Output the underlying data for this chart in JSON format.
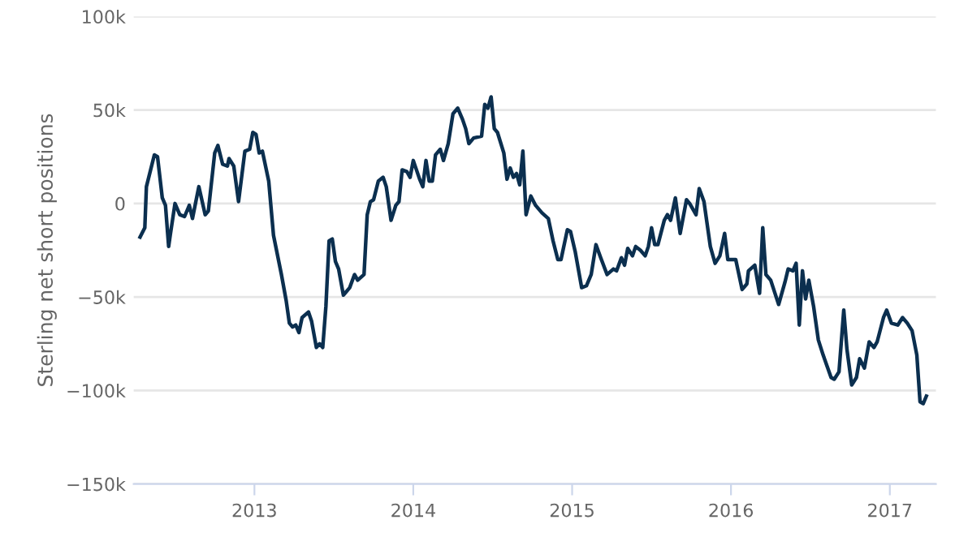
{
  "chart_data": {
    "type": "line",
    "ylabel": "Sterling net short positions",
    "grid": "y",
    "xlim": [
      2012.24,
      2017.29
    ],
    "xticks": [
      2013,
      2014,
      2015,
      2016,
      2017
    ],
    "ylim": [
      -150000,
      100000
    ],
    "yticks": [
      {
        "value": -150000,
        "label": "−150k"
      },
      {
        "value": -100000,
        "label": "−100k"
      },
      {
        "value": -50000,
        "label": "−50k"
      },
      0,
      {
        "value": 50000,
        "label": "50k"
      },
      {
        "value": 100000,
        "label": "100k"
      }
    ],
    "series": [
      {
        "color": "#0b2f4f",
        "x": [
          2012.28,
          2012.31,
          2012.32,
          2012.37,
          2012.39,
          2012.42,
          2012.44,
          2012.46,
          2012.47,
          2012.5,
          2012.53,
          2012.56,
          2012.59,
          2012.61,
          2012.65,
          2012.69,
          2012.71,
          2012.75,
          2012.77,
          2012.8,
          2012.83,
          2012.84,
          2012.87,
          2012.9,
          2012.94,
          2012.97,
          2012.99,
          2013.01,
          2013.03,
          2013.05,
          2013.09,
          2013.12,
          2013.17,
          2013.2,
          2013.22,
          2013.24,
          2013.26,
          2013.28,
          2013.3,
          2013.34,
          2013.36,
          2013.39,
          2013.41,
          2013.43,
          2013.45,
          2013.47,
          2013.49,
          2013.51,
          2013.53,
          2013.56,
          2013.57,
          2013.6,
          2013.63,
          2013.65,
          2013.69,
          2013.71,
          2013.73,
          2013.75,
          2013.78,
          2013.81,
          2013.83,
          2013.86,
          2013.89,
          2013.91,
          2013.93,
          2013.96,
          2013.98,
          2014.0,
          2014.02,
          2014.04,
          2014.06,
          2014.08,
          2014.1,
          2014.12,
          2014.14,
          2014.17,
          2014.19,
          2014.22,
          2014.25,
          2014.28,
          2014.31,
          2014.33,
          2014.35,
          2014.38,
          2014.43,
          2014.45,
          2014.47,
          2014.49,
          2014.51,
          2014.53,
          2014.57,
          2014.59,
          2014.61,
          2014.63,
          2014.65,
          2014.67,
          2014.69,
          2014.71,
          2014.74,
          2014.77,
          2014.81,
          2014.85,
          2014.88,
          2014.91,
          2014.93,
          2014.97,
          2014.99,
          2015.02,
          2015.06,
          2015.09,
          2015.12,
          2015.15,
          2015.18,
          2015.22,
          2015.26,
          2015.28,
          2015.31,
          2015.33,
          2015.35,
          2015.38,
          2015.4,
          2015.43,
          2015.46,
          2015.48,
          2015.5,
          2015.52,
          2015.54,
          2015.58,
          2015.6,
          2015.62,
          2015.65,
          2015.68,
          2015.72,
          2015.74,
          2015.78,
          2015.8,
          2015.83,
          2015.87,
          2015.9,
          2015.93,
          2015.96,
          2015.98,
          2016.03,
          2016.07,
          2016.1,
          2016.11,
          2016.15,
          2016.18,
          2016.2,
          2016.22,
          2016.25,
          2016.3,
          2016.34,
          2016.36,
          2016.39,
          2016.41,
          2016.43,
          2016.45,
          2016.47,
          2016.49,
          2016.52,
          2016.55,
          2016.58,
          2016.63,
          2016.65,
          2016.68,
          2016.71,
          2016.73,
          2016.76,
          2016.79,
          2016.81,
          2016.84,
          2016.87,
          2016.9,
          2016.92,
          2016.96,
          2016.98,
          2017.01,
          2017.05,
          2017.08,
          2017.11,
          2017.14,
          2017.17,
          2017.19,
          2017.21,
          2017.23
        ],
        "values": [
          -18000,
          -13000,
          9000,
          26000,
          25000,
          3000,
          -1000,
          -23000,
          -17000,
          0,
          -6000,
          -7000,
          -1000,
          -8000,
          9000,
          -6000,
          -4000,
          27000,
          31000,
          21000,
          20000,
          24000,
          20000,
          1000,
          28000,
          29000,
          38000,
          37000,
          27000,
          28000,
          12000,
          -17000,
          -38000,
          -52000,
          -64000,
          -66000,
          -65000,
          -69000,
          -61000,
          -58000,
          -63000,
          -77000,
          -75000,
          -77000,
          -55000,
          -20000,
          -19000,
          -31000,
          -35000,
          -49000,
          -48000,
          -45000,
          -38000,
          -41000,
          -38000,
          -6000,
          1000,
          2000,
          12000,
          14000,
          9000,
          -9000,
          -1000,
          1000,
          18000,
          17000,
          14000,
          23000,
          18000,
          13000,
          9000,
          23000,
          12000,
          12000,
          26000,
          29000,
          23000,
          32000,
          48000,
          51000,
          45000,
          40000,
          32000,
          35000,
          36000,
          53000,
          51000,
          57000,
          40000,
          38000,
          27000,
          13000,
          19000,
          14000,
          16000,
          10000,
          28000,
          -6000,
          4000,
          -1000,
          -5000,
          -8000,
          -20000,
          -30000,
          -30000,
          -14000,
          -15000,
          -26000,
          -45000,
          -44000,
          -38000,
          -22000,
          -29000,
          -38000,
          -35000,
          -36000,
          -29000,
          -33000,
          -24000,
          -28000,
          -23000,
          -25000,
          -28000,
          -23000,
          -13000,
          -22000,
          -22000,
          -9000,
          -6000,
          -9000,
          3000,
          -16000,
          2000,
          0,
          -6000,
          8000,
          1000,
          -23000,
          -32000,
          -28000,
          -16000,
          -30000,
          -30000,
          -46000,
          -43000,
          -36000,
          -33000,
          -48000,
          -13000,
          -38000,
          -41000,
          -54000,
          -42000,
          -35000,
          -36000,
          -32000,
          -65000,
          -36000,
          -51000,
          -41000,
          -55000,
          -73000,
          -81000,
          -93000,
          -94000,
          -90000,
          -57000,
          -78000,
          -97000,
          -93000,
          -83000,
          -88000,
          -74000,
          -77000,
          -74000,
          -61000,
          -57000,
          -64000,
          -65000,
          -61000,
          -64000,
          -68000,
          -81000,
          -106000,
          -107000,
          -103000
        ]
      }
    ]
  }
}
